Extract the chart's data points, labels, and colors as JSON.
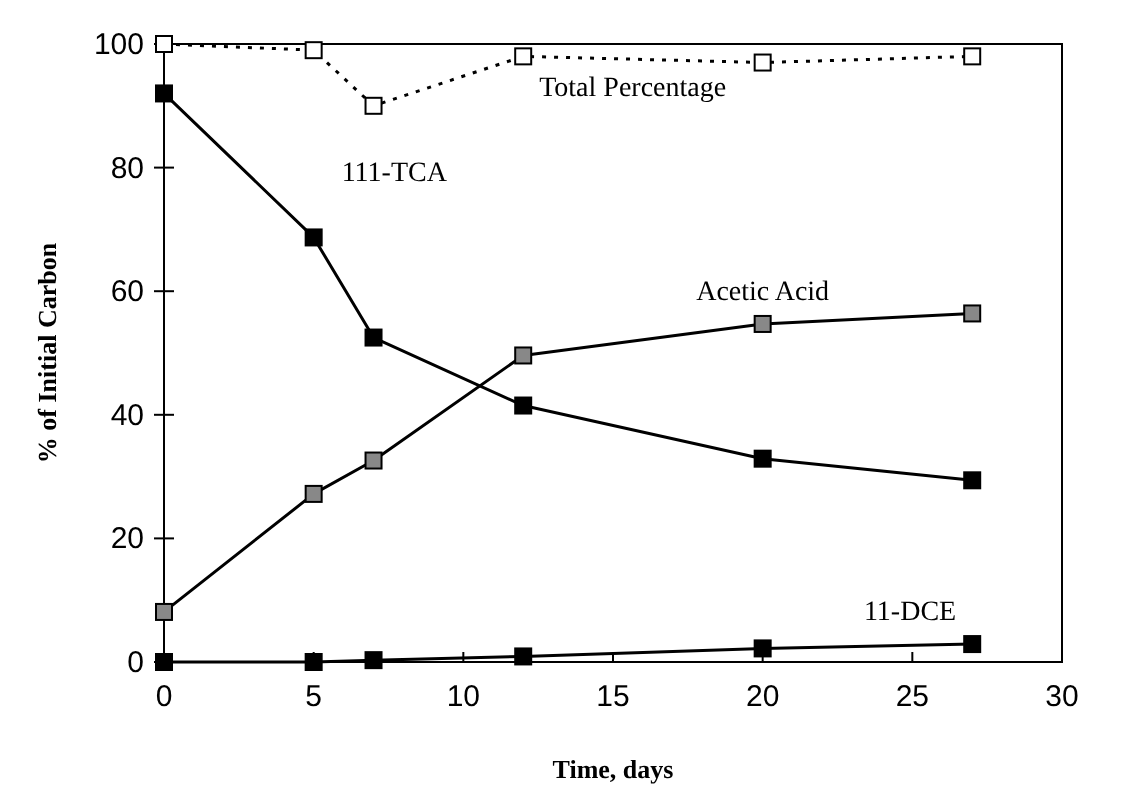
{
  "chart_data": {
    "type": "line",
    "xlabel": "Time, days",
    "ylabel": "% of Initial Carbon",
    "x": [
      0,
      5,
      7,
      12,
      20,
      27
    ],
    "xlim": [
      0,
      30
    ],
    "xticks": [
      0,
      5,
      10,
      15,
      20,
      25,
      30
    ],
    "ylim": [
      0,
      100
    ],
    "yticks": [
      0,
      20,
      40,
      60,
      80,
      100
    ],
    "grid": false,
    "marker": "square",
    "series": [
      {
        "name": "111-TCA",
        "color": "#000000",
        "values": [
          92,
          68.7,
          52.5,
          41.5,
          32.9,
          29.4
        ]
      },
      {
        "name": "Acetic Acid",
        "color": "#888888",
        "values": [
          8.1,
          27.2,
          32.6,
          49.6,
          54.7,
          56.4
        ]
      },
      {
        "name": "11-DCE",
        "color": "#000000",
        "values": [
          0,
          0,
          0.3,
          0.9,
          2.2,
          2.9
        ]
      },
      {
        "name": "Total Percentage",
        "color": "#ffffff",
        "line_style": "dotted",
        "values": [
          100,
          99,
          90,
          98,
          97,
          98
        ]
      }
    ]
  }
}
